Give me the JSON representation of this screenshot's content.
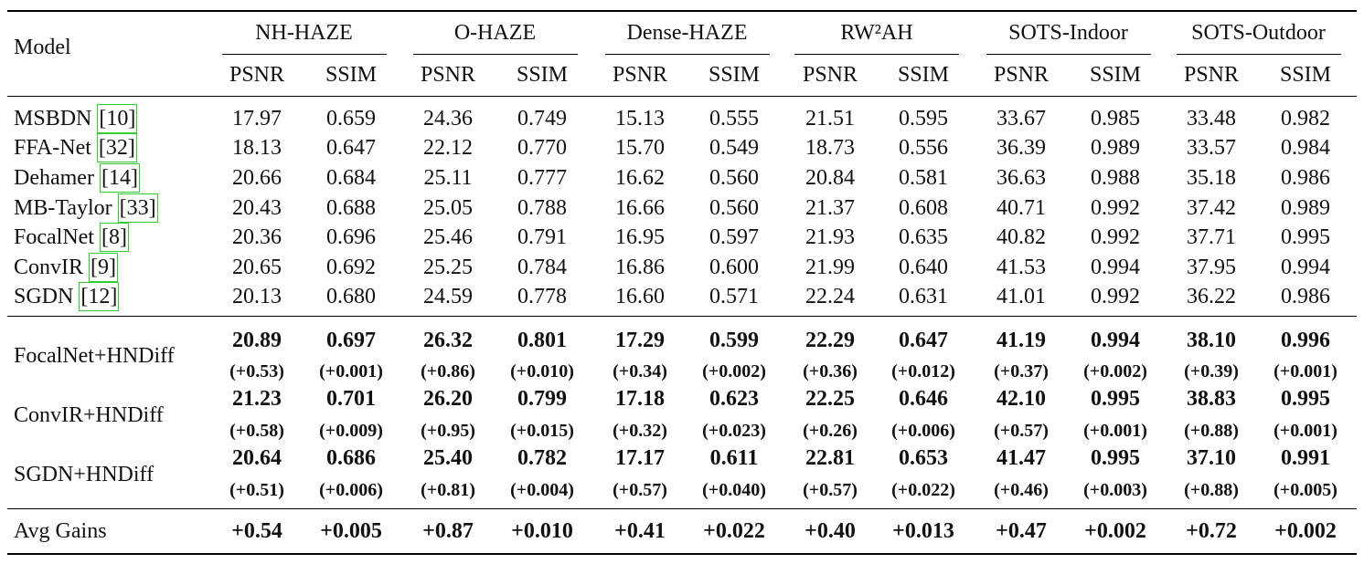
{
  "header": {
    "model": "Model",
    "groups": [
      {
        "name": "NH-HAZE",
        "metrics": [
          "PSNR",
          "SSIM"
        ]
      },
      {
        "name": "O-HAZE",
        "metrics": [
          "PSNR",
          "SSIM"
        ]
      },
      {
        "name": "Dense-HAZE",
        "metrics": [
          "PSNR",
          "SSIM"
        ]
      },
      {
        "name": "RW²AH",
        "metrics": [
          "PSNR",
          "SSIM"
        ]
      },
      {
        "name": "SOTS-Indoor",
        "metrics": [
          "PSNR",
          "SSIM"
        ]
      },
      {
        "name": "SOTS-Outdoor",
        "metrics": [
          "PSNR",
          "SSIM"
        ]
      }
    ]
  },
  "baselines": [
    {
      "model": "MSBDN",
      "ref": "[10]",
      "values": [
        "17.97",
        "0.659",
        "24.36",
        "0.749",
        "15.13",
        "0.555",
        "21.51",
        "0.595",
        "33.67",
        "0.985",
        "33.48",
        "0.982"
      ]
    },
    {
      "model": "FFA-Net",
      "ref": "[32]",
      "values": [
        "18.13",
        "0.647",
        "22.12",
        "0.770",
        "15.70",
        "0.549",
        "18.73",
        "0.556",
        "36.39",
        "0.989",
        "33.57",
        "0.984"
      ]
    },
    {
      "model": "Dehamer",
      "ref": "[14]",
      "values": [
        "20.66",
        "0.684",
        "25.11",
        "0.777",
        "16.62",
        "0.560",
        "20.84",
        "0.581",
        "36.63",
        "0.988",
        "35.18",
        "0.986"
      ]
    },
    {
      "model": "MB-Taylor",
      "ref": "[33]",
      "values": [
        "20.43",
        "0.688",
        "25.05",
        "0.788",
        "16.66",
        "0.560",
        "21.37",
        "0.608",
        "40.71",
        "0.992",
        "37.42",
        "0.989"
      ]
    },
    {
      "model": "FocalNet",
      "ref": "[8]",
      "values": [
        "20.36",
        "0.696",
        "25.46",
        "0.791",
        "16.95",
        "0.597",
        "21.93",
        "0.635",
        "40.82",
        "0.992",
        "37.71",
        "0.995"
      ]
    },
    {
      "model": "ConvIR",
      "ref": "[9]",
      "values": [
        "20.65",
        "0.692",
        "25.25",
        "0.784",
        "16.86",
        "0.600",
        "21.99",
        "0.640",
        "41.53",
        "0.994",
        "37.95",
        "0.994"
      ]
    },
    {
      "model": "SGDN",
      "ref": "[12]",
      "values": [
        "20.13",
        "0.680",
        "24.59",
        "0.778",
        "16.60",
        "0.571",
        "22.24",
        "0.631",
        "41.01",
        "0.992",
        "36.22",
        "0.986"
      ]
    }
  ],
  "hndiff": [
    {
      "model": "FocalNet+HNDiff",
      "values": [
        "20.89",
        "0.697",
        "26.32",
        "0.801",
        "17.29",
        "0.599",
        "22.29",
        "0.647",
        "41.19",
        "0.994",
        "38.10",
        "0.996"
      ],
      "gains": [
        "(+0.53)",
        "(+0.001)",
        "(+0.86)",
        "(+0.010)",
        "(+0.34)",
        "(+0.002)",
        "(+0.36)",
        "(+0.012)",
        "(+0.37)",
        "(+0.002)",
        "(+0.39)",
        "(+0.001)"
      ]
    },
    {
      "model": "ConvIR+HNDiff",
      "values": [
        "21.23",
        "0.701",
        "26.20",
        "0.799",
        "17.18",
        "0.623",
        "22.25",
        "0.646",
        "42.10",
        "0.995",
        "38.83",
        "0.995"
      ],
      "gains": [
        "(+0.58)",
        "(+0.009)",
        "(+0.95)",
        "(+0.015)",
        "(+0.32)",
        "(+0.023)",
        "(+0.26)",
        "(+0.006)",
        "(+0.57)",
        "(+0.001)",
        "(+0.88)",
        "(+0.001)"
      ]
    },
    {
      "model": "SGDN+HNDiff",
      "values": [
        "20.64",
        "0.686",
        "25.40",
        "0.782",
        "17.17",
        "0.611",
        "22.81",
        "0.653",
        "41.47",
        "0.995",
        "37.10",
        "0.991"
      ],
      "gains": [
        "(+0.51)",
        "(+0.006)",
        "(+0.81)",
        "(+0.004)",
        "(+0.57)",
        "(+0.040)",
        "(+0.57)",
        "(+0.022)",
        "(+0.46)",
        "(+0.003)",
        "(+0.88)",
        "(+0.005)"
      ]
    }
  ],
  "avg": {
    "label": "Avg Gains",
    "values": [
      "+0.54",
      "+0.005",
      "+0.87",
      "+0.010",
      "+0.41",
      "+0.022",
      "+0.40",
      "+0.013",
      "+0.47",
      "+0.002",
      "+0.72",
      "+0.002"
    ]
  }
}
